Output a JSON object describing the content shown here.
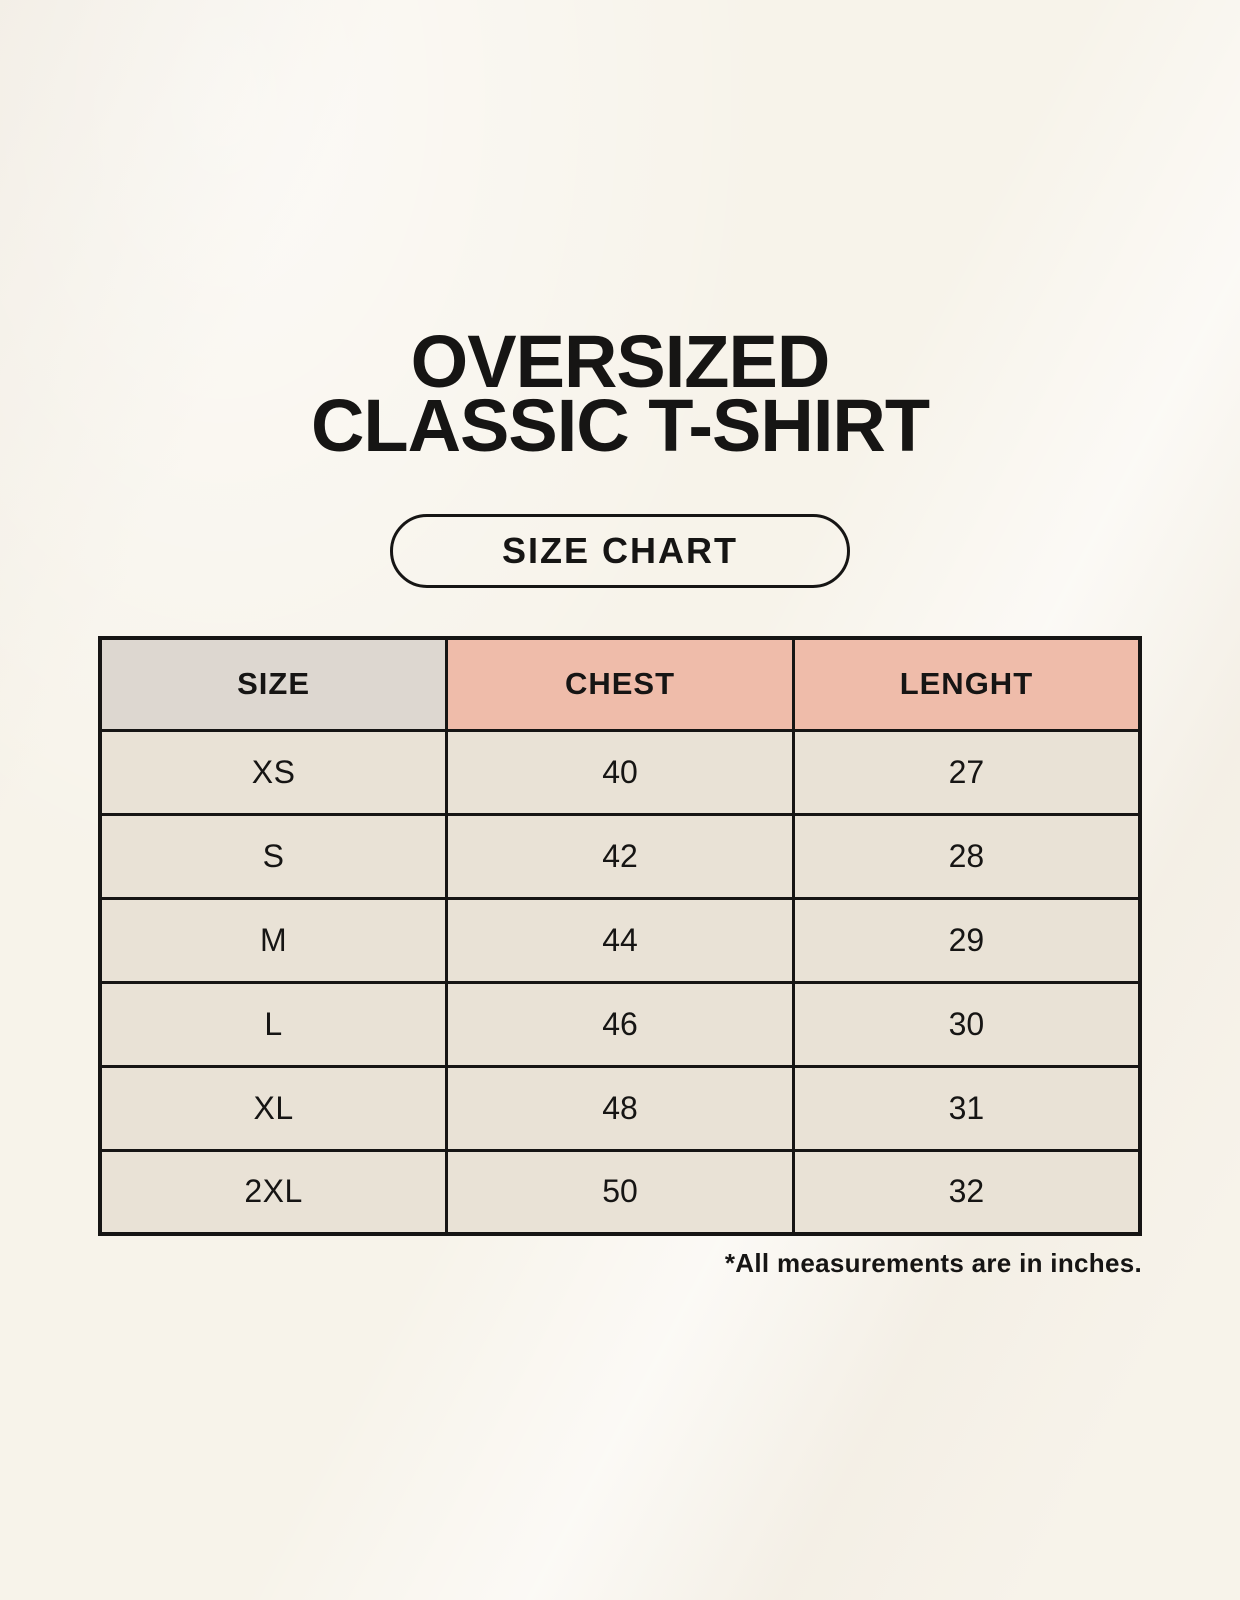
{
  "title": {
    "line1": "OVERSIZED",
    "line2": "CLASSIC T-SHIRT"
  },
  "size_chart_button": {
    "label": "SIZE CHART"
  },
  "table": {
    "headers": [
      {
        "label": "SIZE"
      },
      {
        "label": "CHEST"
      },
      {
        "label": "LENGHT"
      }
    ],
    "rows": [
      {
        "size": "XS",
        "chest": "40",
        "length": "27"
      },
      {
        "size": "S",
        "chest": "42",
        "length": "28"
      },
      {
        "size": "M",
        "chest": "44",
        "length": "29"
      },
      {
        "size": "L",
        "chest": "46",
        "length": "30"
      },
      {
        "size": "XL",
        "chest": "48",
        "length": "31"
      },
      {
        "size": "2XL",
        "chest": "50",
        "length": "32"
      }
    ]
  },
  "footnote": "*All measurements are in inches.",
  "colors": {
    "page_bg": "#f7f3ea",
    "cell_gray": "#ddd7d0",
    "cell_beige": "#e9e2d6",
    "accent_salmon": "#efbcaa",
    "ink": "#161514",
    "border_color": "#161514"
  },
  "chart_data": {
    "type": "table",
    "title": "OVERSIZED CLASSIC T-SHIRT",
    "columns": [
      "SIZE",
      "CHEST",
      "LENGHT"
    ],
    "rows": [
      [
        "XS",
        40,
        27
      ],
      [
        "S",
        42,
        28
      ],
      [
        "M",
        44,
        29
      ],
      [
        "L",
        46,
        30
      ],
      [
        "XL",
        48,
        31
      ],
      [
        "2XL",
        50,
        32
      ]
    ],
    "note": "*All measurements are in inches.",
    "units": "inches"
  }
}
